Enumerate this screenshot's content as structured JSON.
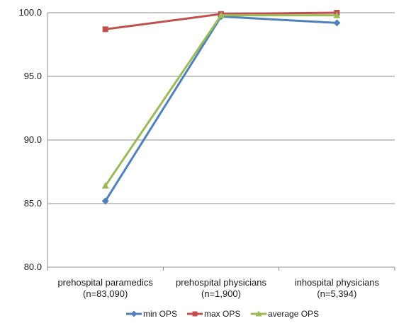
{
  "chart_data": {
    "type": "line",
    "categories": [
      [
        "prehospital paramedics",
        "(n=83,090)"
      ],
      [
        "prehospital physicians",
        "(n=1,900)"
      ],
      [
        "inhospital physicians",
        "(n=5,394)"
      ]
    ],
    "ylim": [
      80.0,
      100.0
    ],
    "yticks": [
      "80.0",
      "85.0",
      "90.0",
      "95.0",
      "100.0"
    ],
    "ytick_values": [
      80,
      85,
      90,
      95,
      100
    ],
    "grid": true,
    "legend_position": "bottom",
    "series": [
      {
        "name": "min OPS",
        "color": "#4f81bd",
        "marker": "diamond",
        "values": [
          85.2,
          99.7,
          99.2
        ]
      },
      {
        "name": "max OPS",
        "color": "#c0504d",
        "marker": "square",
        "values": [
          98.7,
          99.9,
          100.0
        ]
      },
      {
        "name": "average OPS",
        "color": "#9bbb59",
        "marker": "triangle",
        "values": [
          86.4,
          99.8,
          99.8
        ]
      }
    ]
  }
}
